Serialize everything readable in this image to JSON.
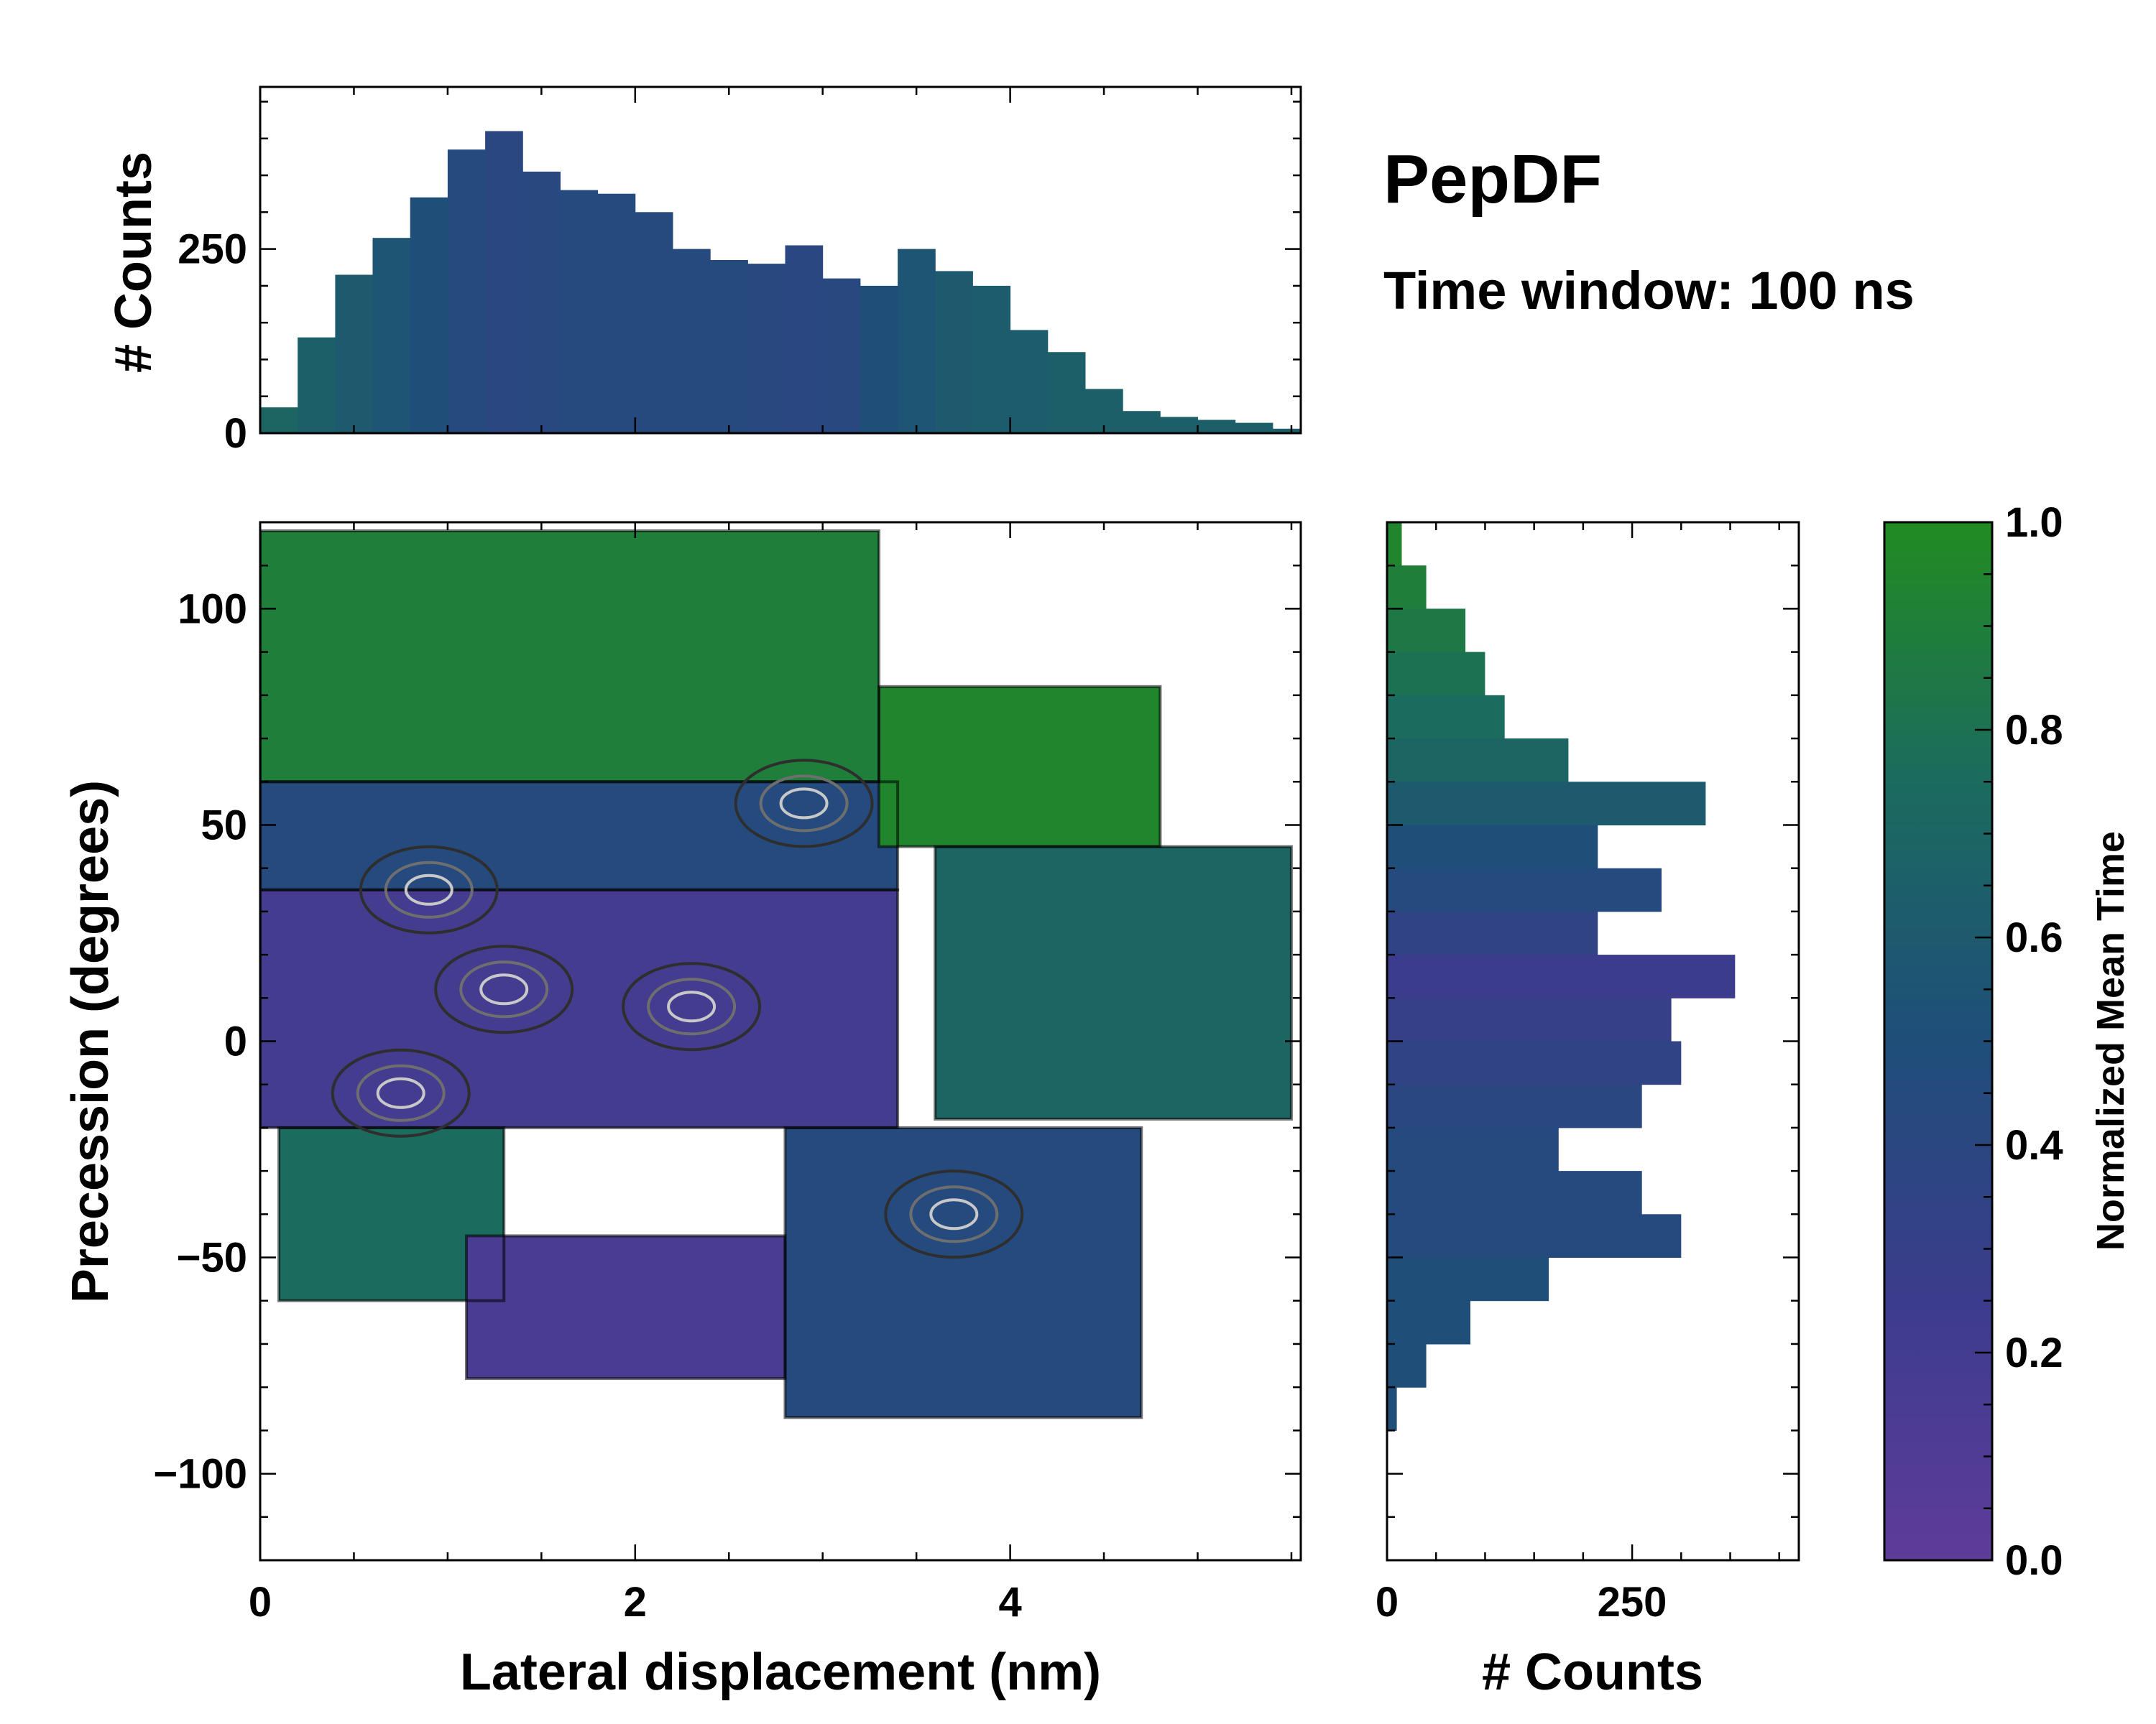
{
  "title": "PepDF",
  "subtitle": "Time window: 100 ns",
  "colors": {
    "cmap_low": "#5e3c99",
    "cmap_mid_low": "#3c3c8c",
    "cmap_mid": "#1f4e79",
    "cmap_mid_high": "#1b6b5e",
    "cmap_high": "#228b22",
    "contour_outer": "#000000",
    "contour_inner": "#2e2e2e",
    "contour_gray": "#6e6e6e",
    "contour_light": "#c8c8c8"
  },
  "chart_data": [
    {
      "name": "main-2d-histogram",
      "type": "heatmap",
      "xlabel": "Lateral displacement (nm)",
      "ylabel": "Precession (degrees)",
      "xlim": [
        0,
        5.55
      ],
      "ylim": [
        -120,
        120
      ],
      "xticks": [
        0,
        2,
        4
      ],
      "xtick_labels": [
        "0",
        "2",
        "4"
      ],
      "yticks": [
        -100,
        -50,
        0,
        50,
        100
      ],
      "ytick_labels": [
        "−100",
        "−50",
        "0",
        "50",
        "100"
      ],
      "color_value": "Normalized Mean Time",
      "regions": [
        {
          "x_range": [
            0.0,
            3.3
          ],
          "y_range": [
            60,
            118
          ],
          "value": 0.9
        },
        {
          "x_range": [
            0.0,
            3.4
          ],
          "y_range": [
            35,
            60
          ],
          "value": 0.45
        },
        {
          "x_range": [
            0.0,
            3.4
          ],
          "y_range": [
            -20,
            35
          ],
          "value": 0.2
        },
        {
          "x_range": [
            0.1,
            1.3
          ],
          "y_range": [
            -60,
            -20
          ],
          "value": 0.75
        },
        {
          "x_range": [
            1.1,
            2.8
          ],
          "y_range": [
            -78,
            -45
          ],
          "value": 0.15
        },
        {
          "x_range": [
            2.8,
            4.7
          ],
          "y_range": [
            -87,
            -20
          ],
          "value": 0.45
        },
        {
          "x_range": [
            3.3,
            4.8
          ],
          "y_range": [
            45,
            82
          ],
          "value": 0.95
        },
        {
          "x_range": [
            3.6,
            5.5
          ],
          "y_range": [
            -18,
            45
          ],
          "value": 0.7
        }
      ],
      "density_peaks": [
        {
          "x": 1.3,
          "y": 12
        },
        {
          "x": 0.9,
          "y": 35
        },
        {
          "x": 2.9,
          "y": 55
        },
        {
          "x": 0.75,
          "y": -12
        },
        {
          "x": 2.3,
          "y": 8
        },
        {
          "x": 3.7,
          "y": -40
        }
      ]
    },
    {
      "name": "top-marginal-histogram",
      "type": "bar",
      "orientation": "vertical",
      "ylabel": "# Counts",
      "xlim": [
        0,
        5.55
      ],
      "ylim": [
        0,
        470
      ],
      "yticks": [
        0,
        250
      ],
      "ytick_labels": [
        "0",
        "250"
      ],
      "bin_centers": [
        0.1,
        0.3,
        0.5,
        0.7,
        0.9,
        1.1,
        1.3,
        1.5,
        1.7,
        1.9,
        2.1,
        2.3,
        2.5,
        2.7,
        2.9,
        3.1,
        3.3,
        3.5,
        3.7,
        3.9,
        4.1,
        4.3,
        4.5,
        4.7,
        4.9,
        5.1,
        5.3,
        5.5
      ],
      "values": [
        35,
        130,
        215,
        265,
        320,
        385,
        410,
        355,
        330,
        325,
        300,
        250,
        235,
        230,
        255,
        210,
        200,
        250,
        220,
        200,
        140,
        110,
        60,
        30,
        22,
        18,
        14,
        6
      ],
      "bar_color_values": [
        0.7,
        0.65,
        0.6,
        0.55,
        0.5,
        0.45,
        0.4,
        0.42,
        0.45,
        0.45,
        0.45,
        0.45,
        0.45,
        0.42,
        0.4,
        0.42,
        0.5,
        0.55,
        0.6,
        0.62,
        0.62,
        0.65,
        0.65,
        0.65,
        0.65,
        0.65,
        0.65,
        0.65
      ]
    },
    {
      "name": "right-marginal-histogram",
      "type": "bar",
      "orientation": "horizontal",
      "xlabel": "# Counts",
      "xlim": [
        0,
        420
      ],
      "ylim": [
        -120,
        120
      ],
      "xticks": [
        0,
        250
      ],
      "xtick_labels": [
        "0",
        "250"
      ],
      "bin_centers": [
        115,
        105,
        95,
        85,
        75,
        65,
        55,
        45,
        35,
        25,
        15,
        5,
        -5,
        -15,
        -25,
        -35,
        -45,
        -55,
        -65,
        -75,
        -85
      ],
      "values": [
        15,
        40,
        80,
        100,
        120,
        185,
        325,
        215,
        280,
        215,
        355,
        290,
        300,
        260,
        175,
        260,
        300,
        165,
        85,
        40,
        10
      ],
      "bar_color_values": [
        0.95,
        0.9,
        0.85,
        0.8,
        0.75,
        0.7,
        0.6,
        0.5,
        0.45,
        0.35,
        0.25,
        0.3,
        0.35,
        0.4,
        0.45,
        0.45,
        0.45,
        0.5,
        0.5,
        0.5,
        0.5
      ]
    },
    {
      "name": "colorbar",
      "type": "colorbar",
      "label": "Normalized Mean Time",
      "range": [
        0.0,
        1.0
      ],
      "ticks": [
        0.0,
        0.2,
        0.4,
        0.6,
        0.8,
        1.0
      ],
      "tick_labels": [
        "0.0",
        "0.2",
        "0.4",
        "0.6",
        "0.8",
        "1.0"
      ]
    }
  ]
}
